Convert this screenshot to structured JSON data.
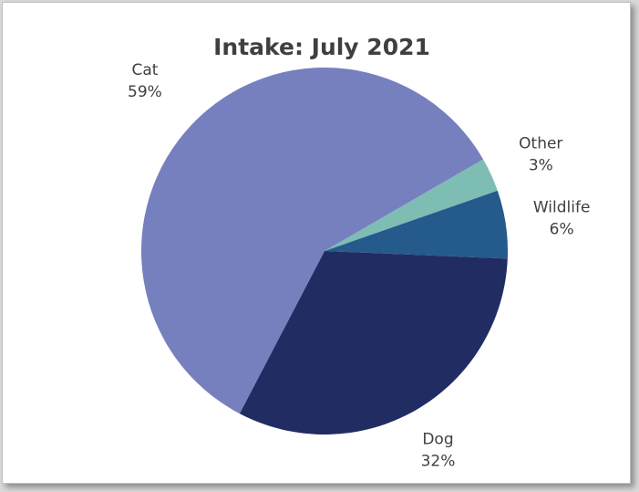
{
  "chart_data": {
    "type": "pie",
    "title": "Intake: July 2021",
    "slices": [
      {
        "category": "Other",
        "value": 3,
        "percent_label": "3%",
        "color": "#7dbdb4"
      },
      {
        "category": "Wildlife",
        "value": 6,
        "percent_label": "6%",
        "color": "#255a8c"
      },
      {
        "category": "Dog",
        "value": 32,
        "percent_label": "32%",
        "color": "#212c63"
      },
      {
        "category": "Cat",
        "value": 59,
        "percent_label": "59%",
        "color": "#7680be"
      }
    ],
    "legend": "none",
    "data_labels": "category-and-percent-outside"
  }
}
